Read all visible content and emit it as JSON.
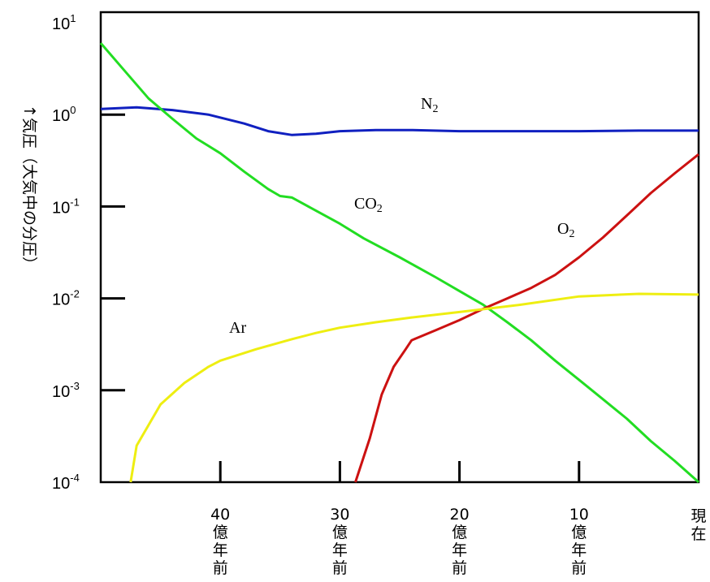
{
  "chart_data": {
    "type": "line",
    "title": "",
    "ylabel": "↑気圧（大気中の分圧）",
    "xlabel": "",
    "y_scale": "log",
    "ylim": [
      0.0001,
      10
    ],
    "xlim": [
      50,
      0
    ],
    "y_ticks": [
      {
        "value": 10,
        "base": "10",
        "exp": "1"
      },
      {
        "value": 1,
        "base": "10",
        "exp": "0"
      },
      {
        "value": 0.1,
        "base": "10",
        "exp": "-1"
      },
      {
        "value": 0.01,
        "base": "10",
        "exp": "-2"
      },
      {
        "value": 0.001,
        "base": "10",
        "exp": "-3"
      },
      {
        "value": 0.0001,
        "base": "10",
        "exp": "-4"
      }
    ],
    "x_ticks": [
      {
        "value": 40,
        "lines": [
          "40",
          "億",
          "年",
          "前"
        ]
      },
      {
        "value": 30,
        "lines": [
          "30",
          "億",
          "年",
          "前"
        ]
      },
      {
        "value": 20,
        "lines": [
          "20",
          "億",
          "年",
          "前"
        ]
      },
      {
        "value": 10,
        "lines": [
          "10",
          "億",
          "年",
          "前"
        ]
      },
      {
        "value": 0,
        "lines": [
          "現",
          "在"
        ]
      }
    ],
    "grid": false,
    "series": [
      {
        "name": "N2",
        "label_base": "N",
        "label_sub": "2",
        "color": "#1020c0",
        "x": [
          50,
          47,
          44,
          41,
          38,
          36,
          34,
          32,
          30,
          27,
          24,
          20,
          15,
          10,
          5,
          0
        ],
        "y": [
          1.15,
          1.2,
          1.12,
          1.0,
          0.8,
          0.66,
          0.6,
          0.62,
          0.66,
          0.68,
          0.68,
          0.66,
          0.66,
          0.66,
          0.67,
          0.67
        ]
      },
      {
        "name": "CO2",
        "label_base": "CO",
        "label_sub": "2",
        "color": "#22dd22",
        "x": [
          50,
          48,
          46,
          44,
          42,
          40,
          38,
          36,
          35,
          34,
          32,
          30,
          28,
          25,
          22,
          20,
          18,
          16,
          14,
          12,
          10,
          8,
          6,
          4,
          2,
          0
        ],
        "y": [
          6.0,
          3.0,
          1.5,
          0.9,
          0.55,
          0.38,
          0.24,
          0.155,
          0.13,
          0.125,
          0.09,
          0.065,
          0.045,
          0.028,
          0.017,
          0.012,
          0.0085,
          0.0055,
          0.0035,
          0.0021,
          0.0013,
          0.0008,
          0.00049,
          0.00028,
          0.00017,
          0.0001
        ]
      },
      {
        "name": "O2",
        "label_base": "O",
        "label_sub": "2",
        "color": "#cc1111",
        "x": [
          28.7,
          27.5,
          26.5,
          25.5,
          24.5,
          24,
          22,
          20,
          18,
          16,
          14,
          12,
          10,
          8,
          6,
          4,
          2,
          0
        ],
        "y": [
          0.0001,
          0.0003,
          0.0009,
          0.0018,
          0.0028,
          0.0035,
          0.0045,
          0.0058,
          0.0077,
          0.01,
          0.013,
          0.018,
          0.028,
          0.046,
          0.08,
          0.14,
          0.23,
          0.37
        ]
      },
      {
        "name": "Ar",
        "label_base": "Ar",
        "label_sub": "",
        "color": "#eeee11",
        "x": [
          47.5,
          47,
          45,
          43,
          41,
          40,
          37,
          34,
          32,
          30,
          27,
          24,
          20,
          15,
          10,
          5,
          0
        ],
        "y": [
          0.0001,
          0.00025,
          0.0007,
          0.0012,
          0.0018,
          0.0021,
          0.0028,
          0.0036,
          0.0042,
          0.0048,
          0.0055,
          0.0062,
          0.0071,
          0.0085,
          0.0105,
          0.0112,
          0.011
        ]
      }
    ]
  }
}
